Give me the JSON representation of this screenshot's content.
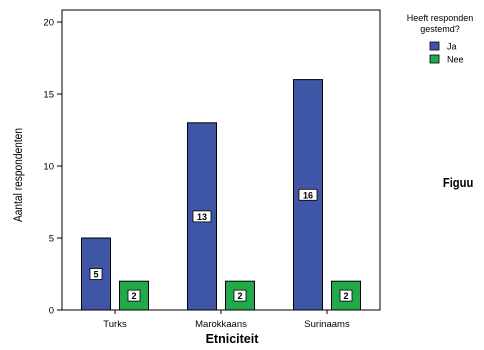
{
  "chart_data": {
    "type": "bar",
    "categories": [
      "Turks",
      "Marokkaans",
      "Surinaams"
    ],
    "series": [
      {
        "name": "Ja",
        "values": [
          5,
          13,
          16
        ],
        "color": "#3f55a6"
      },
      {
        "name": "Nee",
        "values": [
          2,
          2,
          2
        ],
        "color": "#22a94a"
      }
    ],
    "xlabel": "Etniciteit",
    "ylabel": "Aantal respondenten",
    "ylim": [
      0,
      20
    ],
    "yticks": [
      0,
      5,
      10,
      15,
      20
    ],
    "legend": {
      "title_lines": [
        "Heeft responden",
        "gestemd?"
      ],
      "placement": "top-right"
    },
    "data_labels": true,
    "grid": false
  },
  "side_text": "Figuu"
}
